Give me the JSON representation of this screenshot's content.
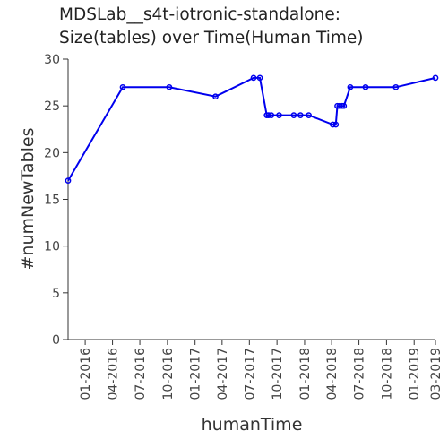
{
  "chart_data": {
    "type": "line",
    "title": [
      "MDSLab__s4t-iotronic-standalone:",
      "Size(tables) over Time(Human Time)"
    ],
    "xlabel": "humanTime",
    "ylabel": "#numNewTables",
    "ylim": [
      0,
      30
    ],
    "yticks": [
      0,
      5,
      10,
      15,
      20,
      25,
      30
    ],
    "xlim": [
      "2015-11-05",
      "2019-03-13"
    ],
    "xticks": [
      "01-2016",
      "04-2016",
      "07-2016",
      "10-2016",
      "01-2017",
      "04-2017",
      "07-2017",
      "10-2017",
      "01-2018",
      "04-2018",
      "07-2018",
      "10-2018",
      "01-2019",
      "03-2019"
    ],
    "grid": false,
    "line_color": "#0000ee",
    "series": [
      {
        "x": [
          "2015-11-05",
          "2016-05-05",
          "2016-10-07",
          "2017-03-10",
          "2017-07-15",
          "2017-08-05",
          "2017-08-28",
          "2017-09-03",
          "2017-09-12",
          "2017-10-08",
          "2017-11-26",
          "2017-12-18",
          "2018-01-15",
          "2018-04-05",
          "2018-04-15",
          "2018-04-20",
          "2018-04-28",
          "2018-05-06",
          "2018-05-12",
          "2018-06-02",
          "2018-07-23",
          "2018-11-01",
          "2019-03-13"
        ],
        "y": [
          17,
          27,
          27,
          26,
          28,
          28,
          24,
          24,
          24,
          24,
          24,
          24,
          24,
          23,
          23,
          25,
          25,
          25,
          25,
          27,
          27,
          27,
          28
        ]
      }
    ]
  }
}
